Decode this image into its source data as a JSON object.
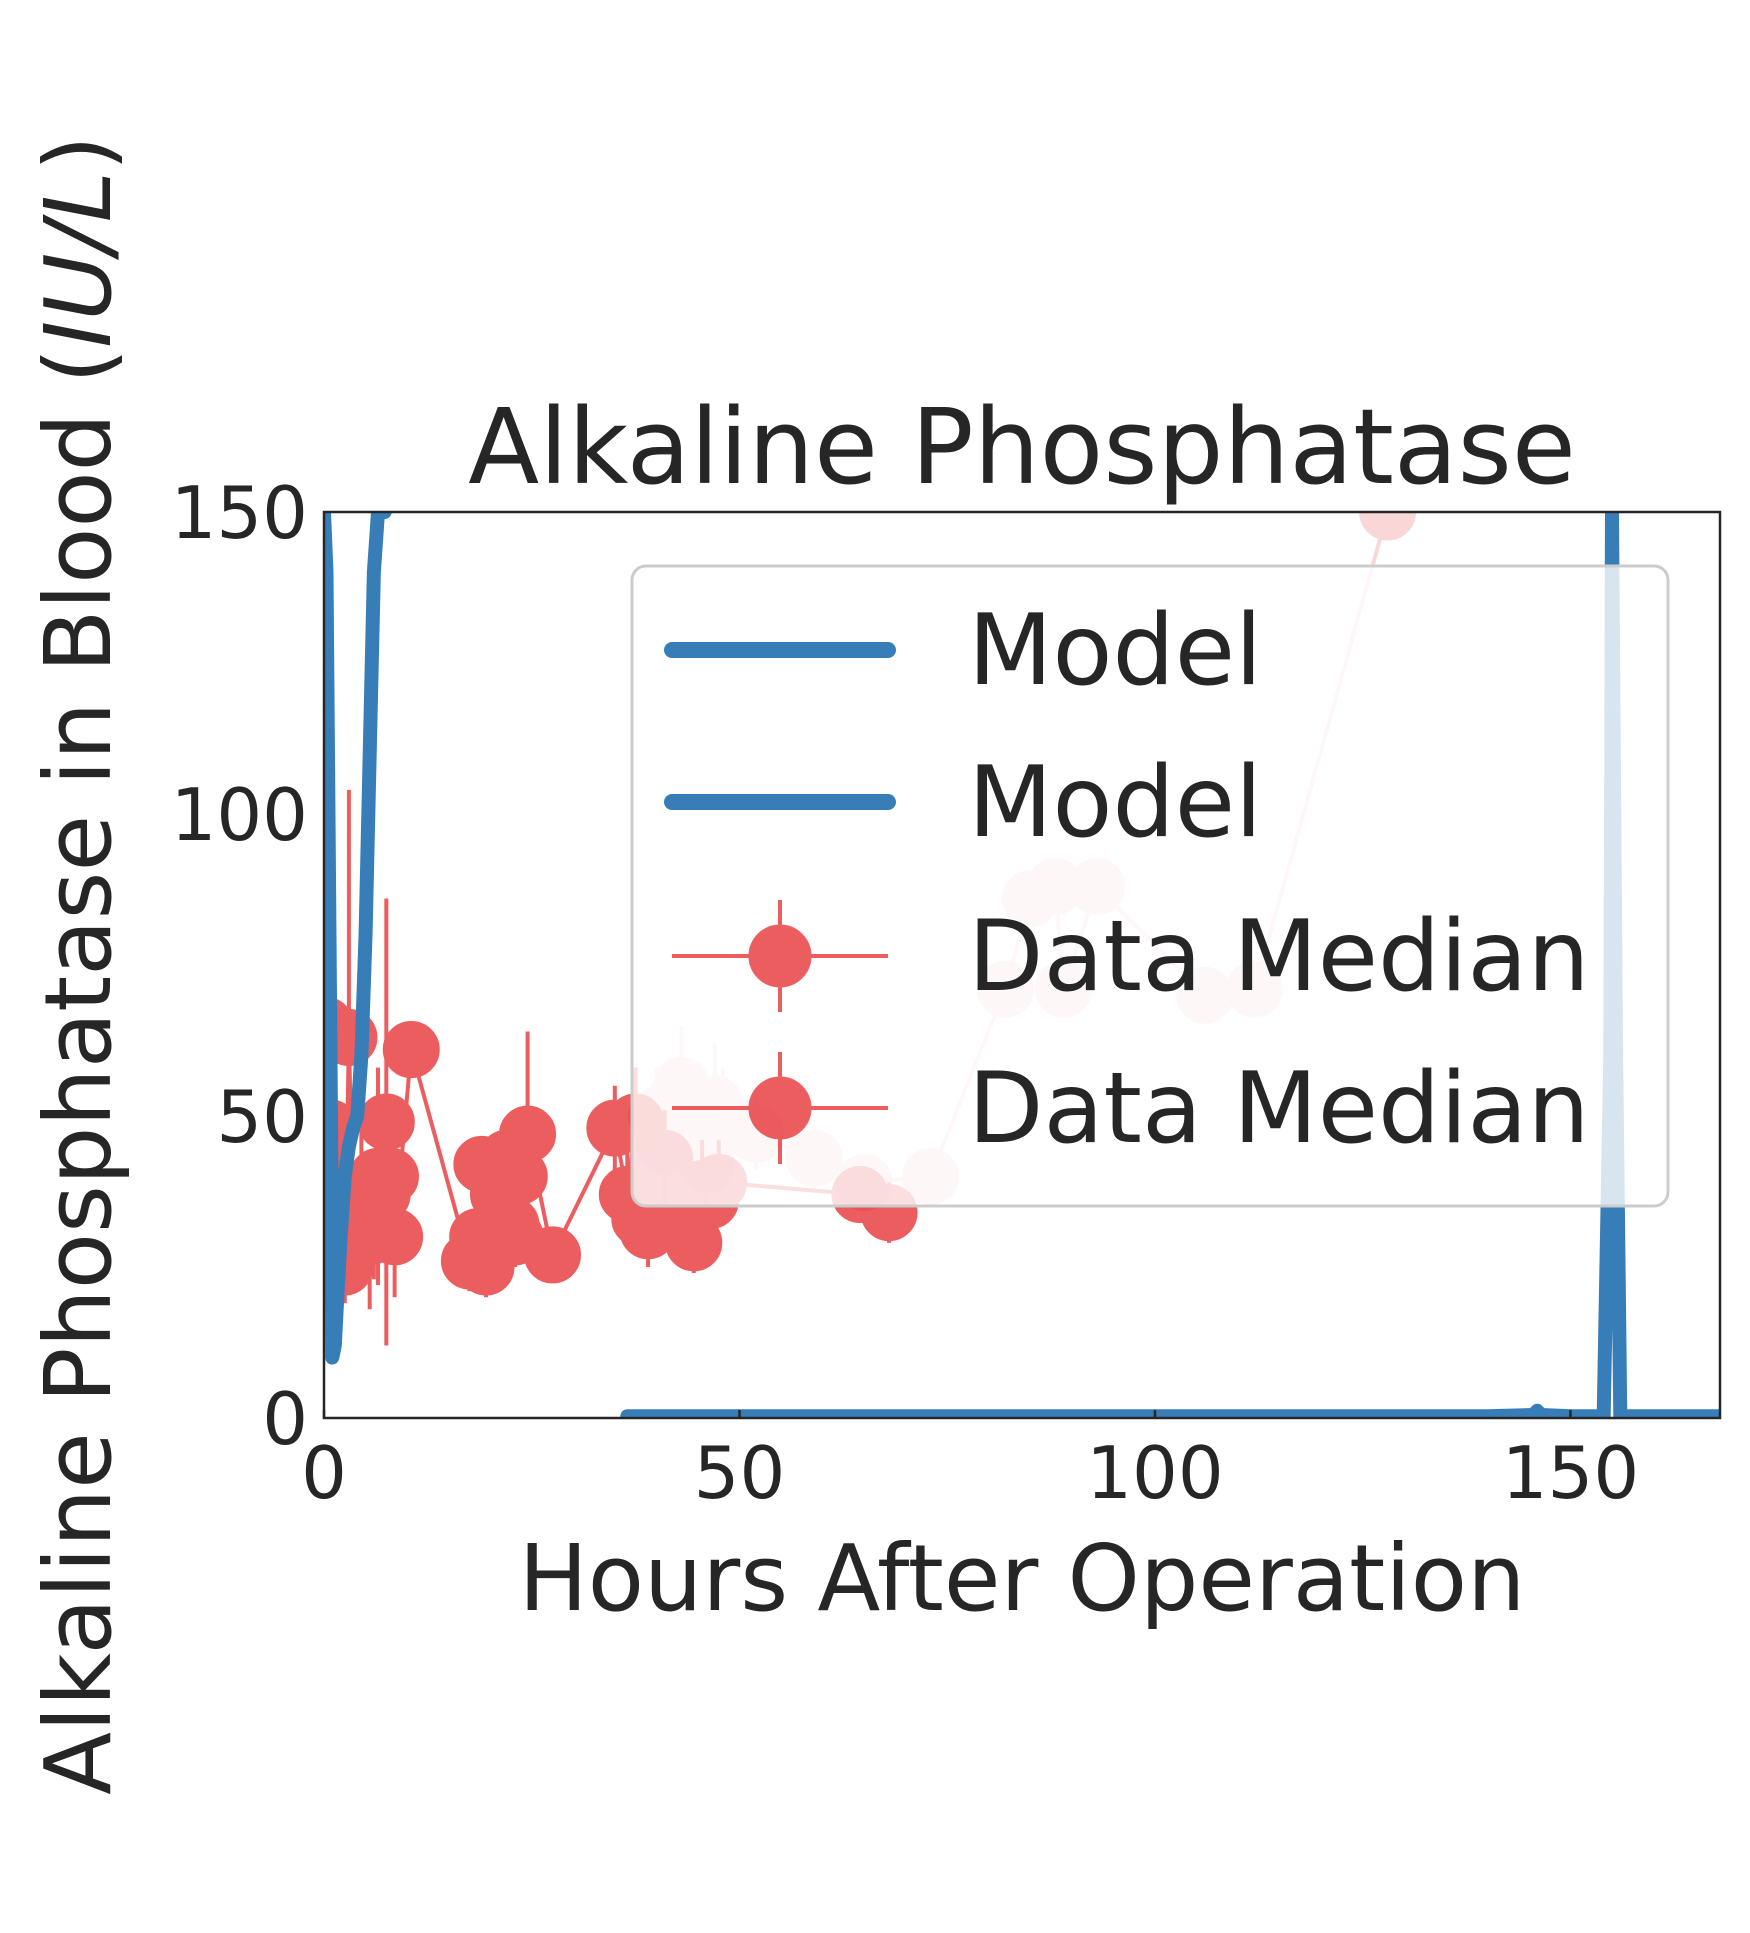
{
  "chart_data": {
    "type": "line",
    "title": "Alkaline Phosphatase",
    "xlabel": "Hours After Operation",
    "ylabel_main": "Alkaline Phosphatase in Blood (",
    "ylabel_unit": "IU/L",
    "ylabel_close": ")",
    "xlim": [
      0,
      168
    ],
    "ylim": [
      0,
      150
    ],
    "xticks": [
      0,
      50,
      100,
      150
    ],
    "yticks": [
      0,
      50,
      100,
      150
    ],
    "xtick_labels": [
      "0",
      "50",
      "100",
      "150"
    ],
    "ytick_labels": [
      "0",
      "50",
      "100",
      "150"
    ],
    "grid": false,
    "legend_placement": "upper-right",
    "legend": [
      "Model",
      "Model",
      "Data Median",
      "Data Median"
    ],
    "colors": {
      "model": "#377eb8",
      "data": "#e41a1c",
      "axis": "#262626"
    },
    "model_series": [
      {
        "name": "Model",
        "x": [
          0,
          0.3,
          0.6,
          0.9,
          1.0,
          1.3,
          1.6,
          2.0,
          2.5,
          3.0,
          3.5,
          4.0,
          4.5,
          5.0,
          5.5,
          6.0,
          6.5,
          7.0,
          7.3
        ],
        "y": [
          150,
          140,
          90,
          40,
          10,
          12,
          20,
          30,
          40,
          45,
          48,
          50,
          60,
          80,
          110,
          140,
          150,
          150,
          150
        ]
      },
      {
        "name": "Model",
        "x": [
          36.5,
          50,
          100,
          140,
          145.5,
          146,
          146.5,
          150,
          154,
          154.8,
          155,
          155.5,
          156,
          168
        ],
        "y": [
          0.3,
          0.3,
          0.3,
          0.3,
          0.5,
          1.2,
          0.5,
          0.3,
          0.3,
          60,
          150,
          60,
          0.3,
          0.3
        ]
      }
    ],
    "data_series": [
      {
        "name": "Data Median",
        "fade": false,
        "x": [
          0.2,
          0.5,
          0.8,
          1.0,
          1.5,
          2.0,
          2.5,
          3.0,
          3.5,
          4.0,
          4.5,
          5.0,
          5.5,
          6.0,
          6.5,
          7.0,
          7.5,
          8.0,
          8.5,
          10.5,
          17.5,
          18.5,
          19.0,
          19.5,
          20.0,
          20.5,
          21.0,
          21.5,
          22.0,
          22.5,
          23.0,
          23.5,
          24.5,
          27.5,
          35.0,
          36.5,
          37.5,
          38.0,
          39.0,
          40.0,
          41.0,
          41.5,
          42.5,
          43.0,
          44.5,
          45.5,
          46.5,
          47.5,
          64.5,
          68.0
        ],
        "y": [
          65,
          40,
          48,
          35,
          30,
          28,
          25,
          63,
          32,
          30,
          38,
          35,
          30,
          33,
          40,
          37,
          49,
          40,
          30,
          61,
          26,
          30,
          42,
          25,
          28,
          41,
          37,
          33,
          43,
          32,
          30,
          40,
          47,
          27,
          48,
          37,
          49,
          33,
          31,
          35,
          43,
          40,
          33,
          38,
          29,
          38,
          36,
          39,
          37,
          34
        ],
        "err": [
          12,
          18,
          10,
          8,
          10,
          7,
          6,
          41,
          10,
          8,
          15,
          9,
          12,
          10,
          18,
          9,
          37,
          12,
          10,
          4,
          5,
          8,
          4,
          5,
          6,
          4,
          7,
          6,
          5,
          6,
          5,
          8,
          17,
          4,
          7,
          8,
          9,
          5,
          6,
          7,
          8,
          6,
          5,
          8,
          5,
          8,
          6,
          7,
          4,
          5
        ]
      },
      {
        "name": "Data Median",
        "fade": true,
        "x": [
          40,
          41,
          42,
          43,
          44,
          45,
          46,
          47,
          48,
          49,
          52,
          59,
          65,
          73,
          82,
          85,
          88,
          89,
          93,
          106,
          112,
          128
        ],
        "y": [
          50,
          45,
          52,
          55,
          48,
          47,
          42,
          52,
          50,
          48,
          47,
          43,
          39,
          40,
          71,
          86,
          88,
          71,
          88,
          70,
          71,
          150
        ],
        "err": [
          8,
          10,
          7,
          10,
          8,
          9,
          7,
          10,
          8,
          6,
          6,
          5,
          4,
          4,
          4,
          4,
          4,
          4,
          4,
          4,
          4,
          0
        ]
      }
    ]
  }
}
